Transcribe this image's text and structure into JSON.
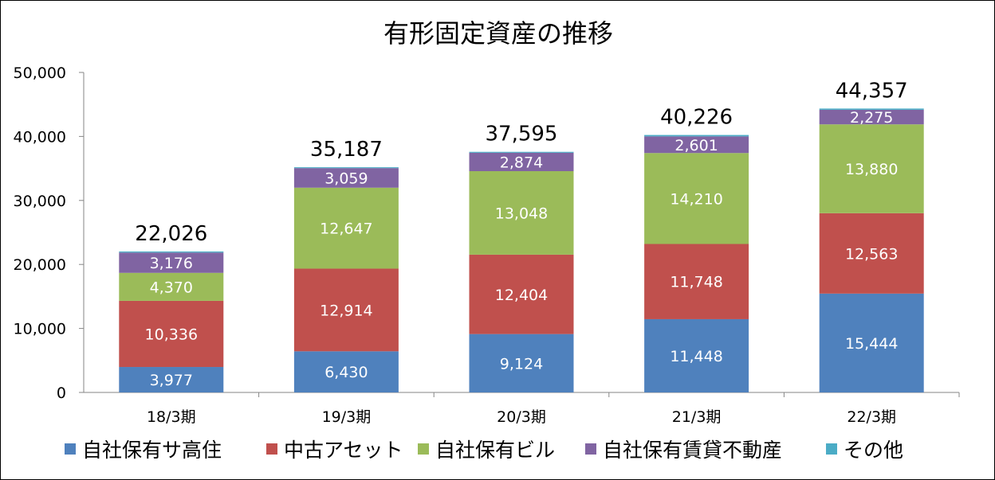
{
  "chart_data": {
    "type": "bar",
    "stacked": true,
    "title": "有形固定資産の推移",
    "categories": [
      "18/3期",
      "19/3期",
      "20/3期",
      "21/3期",
      "22/3期"
    ],
    "series": [
      {
        "name": "自社保有サ高住",
        "color": "#4f81bd",
        "values": [
          3977,
          6430,
          9124,
          11448,
          15444
        ],
        "labels": [
          "3,977",
          "6,430",
          "9,124",
          "11,448",
          "15,444"
        ]
      },
      {
        "name": "中古アセット",
        "color": "#c0504d",
        "values": [
          10336,
          12914,
          12404,
          11748,
          12563
        ],
        "labels": [
          "10,336",
          "12,914",
          "12,404",
          "11,748",
          "12,563"
        ]
      },
      {
        "name": "自社保有ビル",
        "color": "#9bbb59",
        "values": [
          4370,
          12647,
          13048,
          14210,
          13880
        ],
        "labels": [
          "4,370",
          "12,647",
          "13,048",
          "14,210",
          "13,880"
        ]
      },
      {
        "name": "自社保有賃貸不動産",
        "color": "#8064a2",
        "values": [
          3176,
          3059,
          2874,
          2601,
          2275
        ],
        "labels": [
          "3,176",
          "3,059",
          "2,874",
          "2,601",
          "2,275"
        ]
      },
      {
        "name": "その他",
        "color": "#4bacc6",
        "values": [
          167,
          137,
          145,
          219,
          195
        ],
        "labels": [
          "",
          "",
          "",
          "",
          ""
        ]
      }
    ],
    "totals": [
      22026,
      35187,
      37595,
      40226,
      44357
    ],
    "total_labels": [
      "22,026",
      "35,187",
      "37,595",
      "40,226",
      "44,357"
    ],
    "ylim": [
      0,
      50000
    ],
    "yticks": [
      0,
      10000,
      20000,
      30000,
      40000,
      50000
    ],
    "ytick_labels": [
      "0",
      "10,000",
      "20,000",
      "30,000",
      "40,000",
      "50,000"
    ],
    "grid": false,
    "legend_position": "bottom"
  }
}
